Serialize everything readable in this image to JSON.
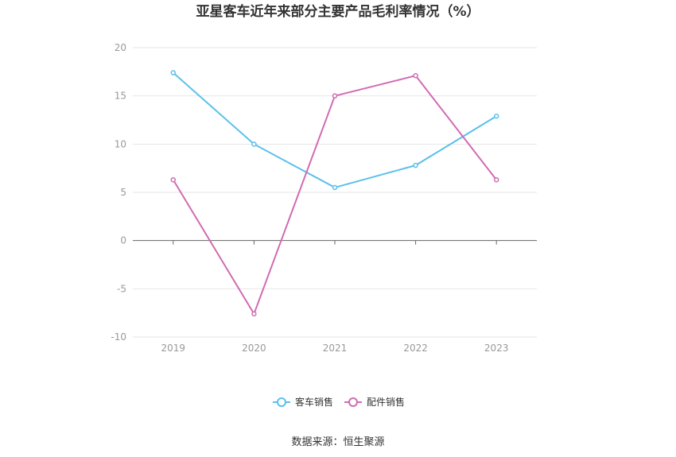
{
  "chart_data": {
    "type": "line",
    "title": "亚星客车近年来部分主要产品毛利率情况（%）",
    "categories": [
      "2019",
      "2020",
      "2021",
      "2022",
      "2023"
    ],
    "ylim": [
      -10,
      20
    ],
    "yticks": [
      20,
      15,
      10,
      5,
      0,
      -5,
      -10
    ],
    "grid": true,
    "legend_position": "bottom",
    "series": [
      {
        "name": "客车销售",
        "color": "#5bc0eb",
        "values": [
          17.4,
          10.0,
          5.5,
          7.8,
          12.9
        ]
      },
      {
        "name": "配件销售",
        "color": "#d16bb3",
        "values": [
          6.3,
          -7.6,
          15.0,
          17.1,
          6.3
        ]
      }
    ]
  },
  "source": "数据来源：恒生聚源"
}
